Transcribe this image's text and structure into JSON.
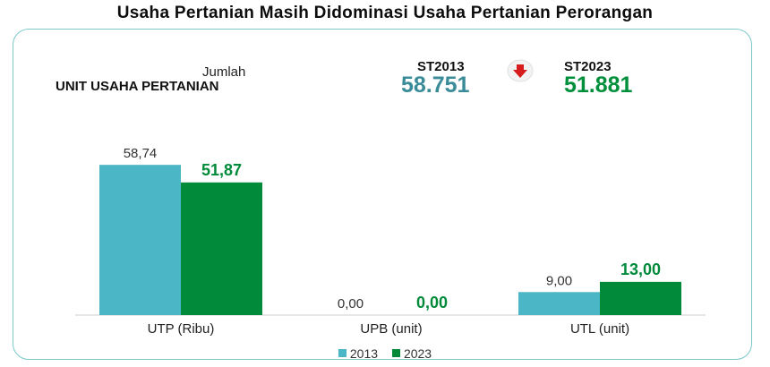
{
  "header": {
    "title": "Usaha Pertanian Masih Didominasi Usaha Pertanian Perorangan"
  },
  "summary": {
    "jumlah_label": "Jumlah",
    "unit_label": "UNIT USAHA PERTANIAN",
    "st2013_label": "ST2013",
    "st2013_value": "58.751",
    "st2023_label": "ST2023",
    "st2023_value": "51.881",
    "change_icon": "arrow-down-icon"
  },
  "colors": {
    "series_2013": "#4bb6c5",
    "series_2023": "#008a3a",
    "st2013_text": "#3a8c98",
    "st2023_text": "#00903c",
    "arrow": "#d61c1c",
    "card_border": "#7cc8c8"
  },
  "chart_data": {
    "type": "bar",
    "categories": [
      "UTP (Ribu)",
      "UPB (unit)",
      "UTL (unit)"
    ],
    "series": [
      {
        "name": "2013",
        "values": [
          58.74,
          0.0,
          9.0
        ],
        "labels": [
          "58,74",
          "0,00",
          "9,00"
        ]
      },
      {
        "name": "2023",
        "values": [
          51.87,
          0.0,
          13.0
        ],
        "labels": [
          "51,87",
          "0,00",
          "13,00"
        ]
      }
    ],
    "ylim": [
      0,
      70
    ],
    "grid": false,
    "legend": "bottom-center"
  }
}
